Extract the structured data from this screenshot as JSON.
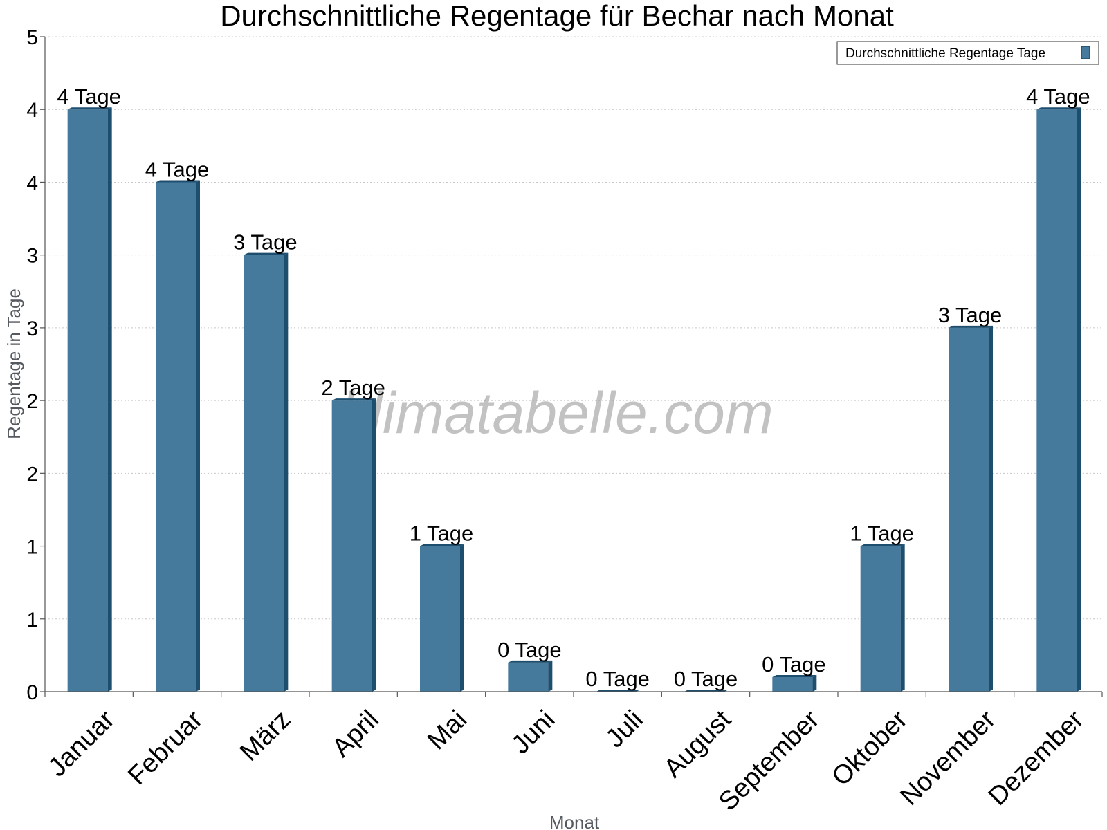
{
  "chart_data": {
    "type": "bar",
    "title": "Durchschnittliche Regentage für Bechar nach Monat",
    "xlabel": "Monat",
    "ylabel": "Regentage in Tage",
    "ylim": [
      0,
      4.5
    ],
    "y_tick_values": [
      0,
      0.5,
      1,
      1.5,
      2,
      2.5,
      3,
      3.5,
      4,
      4.5
    ],
    "y_tick_labels": [
      "0",
      "1",
      "1",
      "2",
      "2",
      "3",
      "3",
      "4",
      "4",
      "5"
    ],
    "categories": [
      "Januar",
      "Februar",
      "März",
      "April",
      "Mai",
      "Juni",
      "Juli",
      "August",
      "September",
      "Oktober",
      "November",
      "Dezember"
    ],
    "series": [
      {
        "name": "Durchschnittliche Regentage Tage",
        "values": [
          4,
          3.5,
          3,
          2,
          1,
          0.2,
          0,
          0,
          0.1,
          1,
          2.5,
          4
        ],
        "data_labels": [
          "4 Tage",
          "4 Tage",
          "3 Tage",
          "2 Tage",
          "1 Tage",
          "0 Tage",
          "0 Tage",
          "0 Tage",
          "0 Tage",
          "1 Tage",
          "3 Tage",
          "4 Tage"
        ],
        "color": "#467a9c",
        "side_color": "#1e4e6e"
      }
    ],
    "grid": true,
    "legend_position": "top-right",
    "watermark": "klimatabelle.com"
  }
}
